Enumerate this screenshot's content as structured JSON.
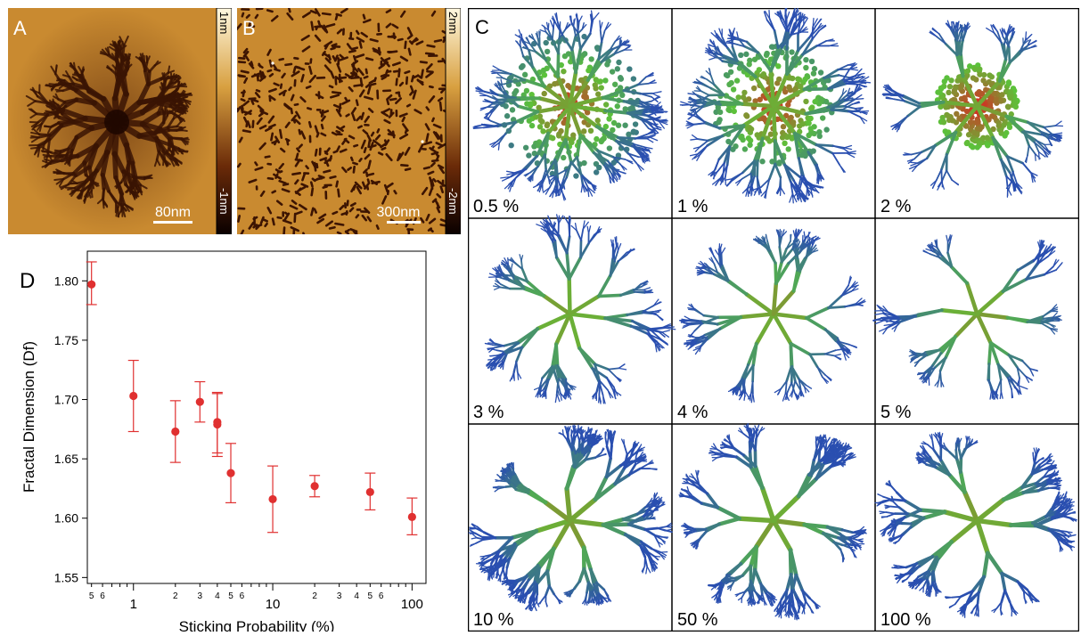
{
  "panel_a": {
    "letter": "A",
    "scale_bar_label": "80nm",
    "colorbar_max": "1nm",
    "colorbar_min": "-1nm"
  },
  "panel_b": {
    "letter": "B",
    "scale_bar_label": "300nm",
    "colorbar_max": "2nm",
    "colorbar_min": "-2nm"
  },
  "panel_c": {
    "letter": "C",
    "cells": [
      {
        "label": "0.5 %"
      },
      {
        "label": "1 %"
      },
      {
        "label": "2 %"
      },
      {
        "label": "3 %"
      },
      {
        "label": "4 %"
      },
      {
        "label": "5 %"
      },
      {
        "label": "10 %"
      },
      {
        "label": "50 %"
      },
      {
        "label": "100 %"
      }
    ],
    "colors": {
      "core": "#e02020",
      "middle": "#5cc23a",
      "edge": "#2a4fb0"
    }
  },
  "panel_d": {
    "letter": "D"
  },
  "chart_data": {
    "type": "scatter",
    "title": "",
    "xlabel": "Sticking Probability (%)",
    "ylabel": "Fractal Dimension (Df)",
    "x_scale": "log",
    "xlim": [
      0.5,
      100
    ],
    "ylim": [
      1.545,
      1.825
    ],
    "grid": false,
    "marker_color": "#e03030",
    "x_major_ticks": [
      {
        "value": 1,
        "label": "1"
      },
      {
        "value": 10,
        "label": "10"
      },
      {
        "value": 100,
        "label": "100"
      }
    ],
    "x_minor_tick_labels": [
      {
        "value": 0.5,
        "label": "5"
      },
      {
        "value": 0.6,
        "label": "6"
      },
      {
        "value": 2,
        "label": "2"
      },
      {
        "value": 3,
        "label": "3"
      },
      {
        "value": 4,
        "label": "4"
      },
      {
        "value": 5,
        "label": "5"
      },
      {
        "value": 6,
        "label": "6"
      },
      {
        "value": 20,
        "label": "2"
      },
      {
        "value": 30,
        "label": "3"
      },
      {
        "value": 40,
        "label": "4"
      },
      {
        "value": 50,
        "label": "5"
      },
      {
        "value": 60,
        "label": "6"
      }
    ],
    "y_ticks": [
      {
        "value": 1.55,
        "label": "1.55"
      },
      {
        "value": 1.6,
        "label": "1.60"
      },
      {
        "value": 1.65,
        "label": "1.65"
      },
      {
        "value": 1.7,
        "label": "1.70"
      },
      {
        "value": 1.75,
        "label": "1.75"
      },
      {
        "value": 1.8,
        "label": "1.80"
      }
    ],
    "points": [
      {
        "x": 0.5,
        "y": 1.797,
        "err_low": 1.78,
        "err_high": 1.816
      },
      {
        "x": 1,
        "y": 1.703,
        "err_low": 1.673,
        "err_high": 1.733
      },
      {
        "x": 2,
        "y": 1.673,
        "err_low": 1.647,
        "err_high": 1.699
      },
      {
        "x": 3,
        "y": 1.698,
        "err_low": 1.681,
        "err_high": 1.715
      },
      {
        "x": 4,
        "y": 1.679,
        "err_low": 1.652,
        "err_high": 1.705
      },
      {
        "x": 4,
        "y": 1.681,
        "err_low": 1.655,
        "err_high": 1.706
      },
      {
        "x": 5,
        "y": 1.638,
        "err_low": 1.613,
        "err_high": 1.663
      },
      {
        "x": 10,
        "y": 1.616,
        "err_low": 1.588,
        "err_high": 1.644
      },
      {
        "x": 20,
        "y": 1.627,
        "err_low": 1.618,
        "err_high": 1.636
      },
      {
        "x": 50,
        "y": 1.622,
        "err_low": 1.607,
        "err_high": 1.638
      },
      {
        "x": 100,
        "y": 1.601,
        "err_low": 1.586,
        "err_high": 1.617
      }
    ]
  }
}
